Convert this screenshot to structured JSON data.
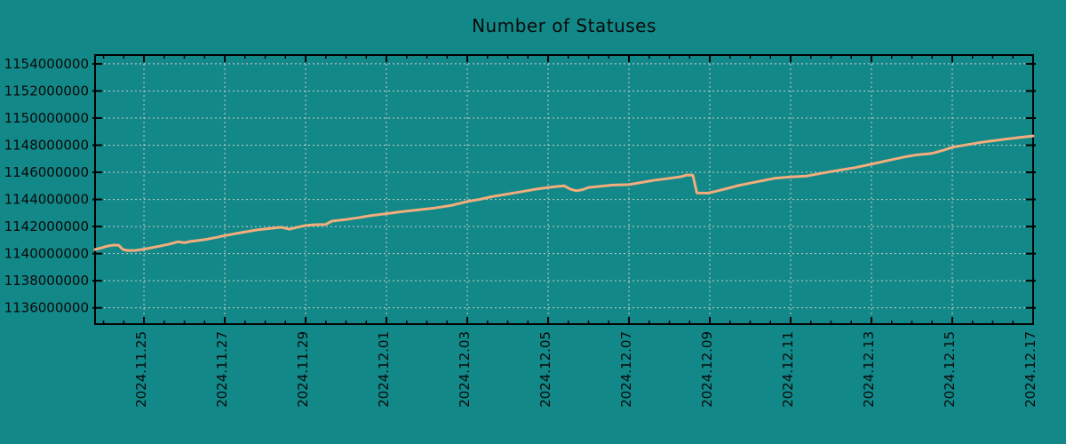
{
  "title": "Number of Statuses",
  "colors": {
    "background": "#128888",
    "line": "#F3AD7C",
    "grid": "#CCCCCC",
    "axis": "#000000",
    "text": "#0A0A0A"
  },
  "chart_data": {
    "type": "line",
    "title": "Number of Statuses",
    "grid": "dashed",
    "legend": "none",
    "x_axis": {
      "label": "",
      "day0_date": "2024.11.23",
      "domain_days": [
        0.79,
        24
      ],
      "minor_tick_every_days": 0.5,
      "ticks": [
        {
          "day": 2,
          "label": "2024.11.25"
        },
        {
          "day": 4,
          "label": "2024.11.27"
        },
        {
          "day": 6,
          "label": "2024.11.29"
        },
        {
          "day": 8,
          "label": "2024.12.01"
        },
        {
          "day": 10,
          "label": "2024.12.03"
        },
        {
          "day": 12,
          "label": "2024.12.05"
        },
        {
          "day": 14,
          "label": "2024.12.07"
        },
        {
          "day": 16,
          "label": "2024.12.09"
        },
        {
          "day": 18,
          "label": "2024.12.11"
        },
        {
          "day": 20,
          "label": "2024.12.13"
        },
        {
          "day": 22,
          "label": "2024.12.15"
        },
        {
          "day": 24,
          "label": "2024.12.17"
        }
      ]
    },
    "y_axis": {
      "label": "",
      "range": [
        1134800000,
        1154650000
      ],
      "ticks": [
        {
          "value": 1136000000,
          "label": "1136000000"
        },
        {
          "value": 1138000000,
          "label": "1138000000"
        },
        {
          "value": 1140000000,
          "label": "1140000000"
        },
        {
          "value": 1142000000,
          "label": "1142000000"
        },
        {
          "value": 1144000000,
          "label": "1144000000"
        },
        {
          "value": 1146000000,
          "label": "1146000000"
        },
        {
          "value": 1148000000,
          "label": "1148000000"
        },
        {
          "value": 1150000000,
          "label": "1150000000"
        },
        {
          "value": 1152000000,
          "label": "1152000000"
        },
        {
          "value": 1154000000,
          "label": "1154000000"
        }
      ]
    },
    "series": [
      {
        "name": "Number of Statuses",
        "color": "#F3AD7C",
        "points_day_value": [
          [
            0.79,
            1140300000
          ],
          [
            0.95,
            1140430000
          ],
          [
            1.1,
            1140560000
          ],
          [
            1.25,
            1140630000
          ],
          [
            1.38,
            1140610000
          ],
          [
            1.48,
            1140300000
          ],
          [
            1.6,
            1140230000
          ],
          [
            1.8,
            1140240000
          ],
          [
            2.0,
            1140330000
          ],
          [
            2.3,
            1140500000
          ],
          [
            2.6,
            1140680000
          ],
          [
            2.85,
            1140880000
          ],
          [
            3.0,
            1140800000
          ],
          [
            3.15,
            1140900000
          ],
          [
            3.5,
            1141030000
          ],
          [
            3.8,
            1141200000
          ],
          [
            4.0,
            1141330000
          ],
          [
            4.4,
            1141550000
          ],
          [
            4.8,
            1141750000
          ],
          [
            5.2,
            1141880000
          ],
          [
            5.4,
            1141950000
          ],
          [
            5.6,
            1141800000
          ],
          [
            5.8,
            1141950000
          ],
          [
            6.0,
            1142070000
          ],
          [
            6.2,
            1142130000
          ],
          [
            6.5,
            1142160000
          ],
          [
            6.65,
            1142400000
          ],
          [
            7.0,
            1142520000
          ],
          [
            7.3,
            1142650000
          ],
          [
            7.6,
            1142800000
          ],
          [
            8.0,
            1142950000
          ],
          [
            8.4,
            1143100000
          ],
          [
            8.8,
            1143230000
          ],
          [
            9.2,
            1143370000
          ],
          [
            9.6,
            1143550000
          ],
          [
            10.0,
            1143850000
          ],
          [
            10.3,
            1144000000
          ],
          [
            10.6,
            1144200000
          ],
          [
            11.0,
            1144400000
          ],
          [
            11.3,
            1144550000
          ],
          [
            11.7,
            1144760000
          ],
          [
            12.0,
            1144880000
          ],
          [
            12.2,
            1144950000
          ],
          [
            12.4,
            1145000000
          ],
          [
            12.55,
            1144750000
          ],
          [
            12.7,
            1144640000
          ],
          [
            12.85,
            1144720000
          ],
          [
            13.0,
            1144880000
          ],
          [
            13.3,
            1144970000
          ],
          [
            13.6,
            1145060000
          ],
          [
            14.0,
            1145090000
          ],
          [
            14.3,
            1145250000
          ],
          [
            14.6,
            1145400000
          ],
          [
            15.0,
            1145560000
          ],
          [
            15.3,
            1145680000
          ],
          [
            15.42,
            1145800000
          ],
          [
            15.58,
            1145790000
          ],
          [
            15.68,
            1144480000
          ],
          [
            15.95,
            1144460000
          ],
          [
            16.15,
            1144600000
          ],
          [
            16.45,
            1144820000
          ],
          [
            16.7,
            1145020000
          ],
          [
            17.0,
            1145200000
          ],
          [
            17.3,
            1145380000
          ],
          [
            17.6,
            1145560000
          ],
          [
            18.0,
            1145660000
          ],
          [
            18.4,
            1145730000
          ],
          [
            18.8,
            1145950000
          ],
          [
            19.2,
            1146150000
          ],
          [
            19.6,
            1146350000
          ],
          [
            20.0,
            1146600000
          ],
          [
            20.4,
            1146870000
          ],
          [
            20.8,
            1147120000
          ],
          [
            21.1,
            1147280000
          ],
          [
            21.5,
            1147400000
          ],
          [
            21.8,
            1147650000
          ],
          [
            22.0,
            1147850000
          ],
          [
            22.4,
            1148050000
          ],
          [
            22.8,
            1148250000
          ],
          [
            23.2,
            1148400000
          ],
          [
            23.6,
            1148550000
          ],
          [
            24.0,
            1148680000
          ]
        ]
      }
    ]
  }
}
